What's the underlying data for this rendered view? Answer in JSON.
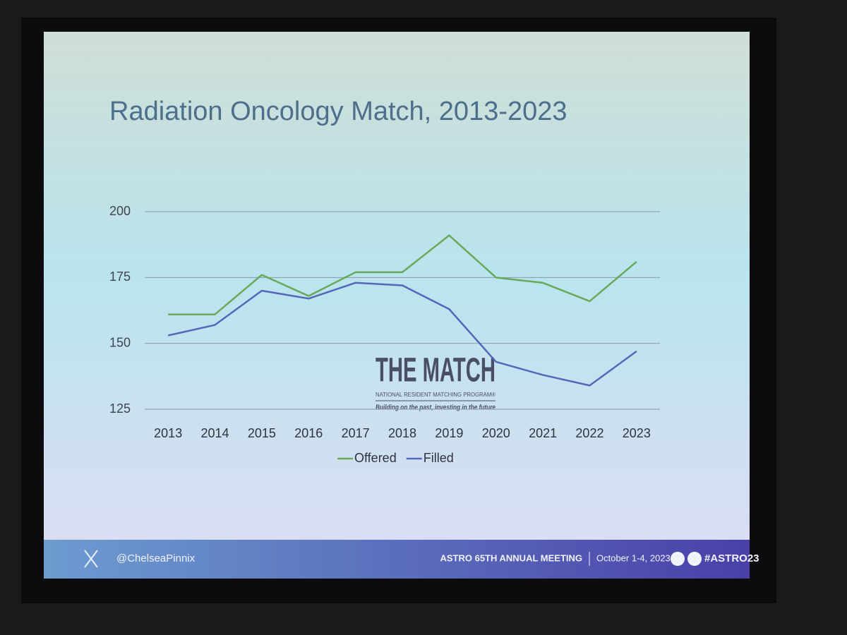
{
  "chart_data": {
    "type": "line",
    "title": "Radiation Oncology Match, 2013-2023",
    "categories": [
      "2013",
      "2014",
      "2015",
      "2016",
      "2017",
      "2018",
      "2019",
      "2020",
      "2021",
      "2022",
      "2023"
    ],
    "series": [
      {
        "name": "Offered",
        "color": "#6aa85a",
        "values": [
          161,
          161,
          176,
          168,
          177,
          177,
          191,
          175,
          173,
          166,
          181
        ]
      },
      {
        "name": "Filled",
        "color": "#5567b8",
        "values": [
          153,
          157,
          170,
          167,
          173,
          172,
          163,
          143,
          138,
          134,
          147
        ]
      }
    ],
    "ylim": [
      125,
      200
    ],
    "yticks": [
      125,
      150,
      175,
      200
    ],
    "grid": true,
    "legend": "bottom"
  },
  "logo": {
    "name": "THE MATCH",
    "subtitle": "NATIONAL RESIDENT MATCHING PROGRAM®",
    "tagline": "Building on the past, investing in the future"
  },
  "footer": {
    "handle": "@ChelseaPinnix",
    "meeting": "ASTRO 65TH ANNUAL MEETING",
    "dates": "October 1-4, 2023",
    "hashtag": "#ASTRO23"
  }
}
